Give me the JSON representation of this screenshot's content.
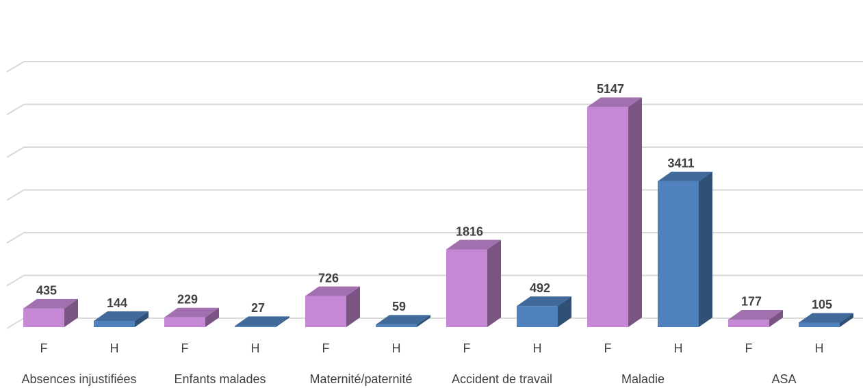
{
  "chart_data": {
    "type": "bar3d",
    "categories": [
      "Absences injustifiées",
      "Enfants malades",
      "Maternité/paternité",
      "Accident de travail",
      "Maladie",
      "ASA"
    ],
    "series": [
      {
        "name": "F",
        "color": "#c588d4",
        "values": [
          435,
          229,
          726,
          1816,
          5147,
          177
        ]
      },
      {
        "name": "H",
        "color": "#4f81bd",
        "values": [
          144,
          27,
          59,
          492,
          3411,
          105
        ]
      }
    ],
    "ylim": [
      0,
      6000
    ],
    "yticks": [
      0,
      1000,
      2000,
      3000,
      4000,
      5000,
      6000
    ],
    "grid": true,
    "show_tick_labels": false,
    "data_labels": true
  }
}
